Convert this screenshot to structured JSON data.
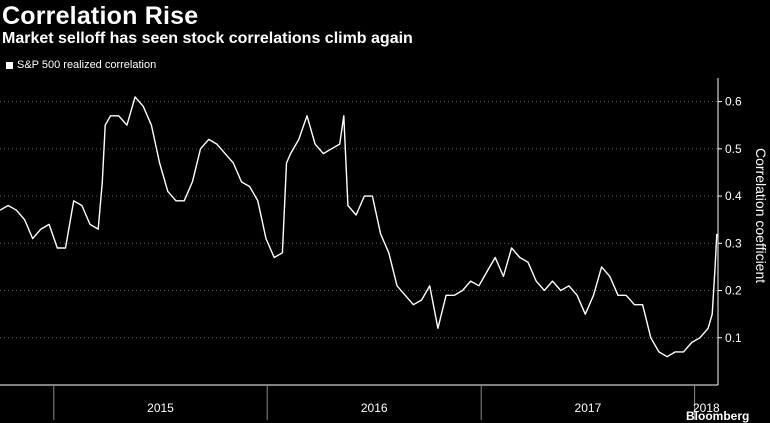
{
  "header": {
    "title": "Correlation Rise",
    "subtitle": "Market selloff has seen stock correlations climb again"
  },
  "watermark": "Bloomberg",
  "chart_data": {
    "type": "line",
    "ylabel": "Correlation coefficient",
    "ylim": [
      0,
      0.65
    ],
    "yticks": [
      0.1,
      0.2,
      0.3,
      0.4,
      0.5,
      0.6
    ],
    "y_axis_side": "right",
    "xlim": [
      "2014-10-01",
      "2018-02-10"
    ],
    "x_year_labels": [
      "2015",
      "2016",
      "2017",
      "2018"
    ],
    "grid": "horizontal dotted",
    "legend_position": "top-left",
    "series": [
      {
        "name": "S&P 500 realized correlation",
        "color": "#ffffff",
        "points": [
          [
            "2014-10-01",
            0.37
          ],
          [
            "2014-10-15",
            0.38
          ],
          [
            "2014-10-29",
            0.37
          ],
          [
            "2014-11-12",
            0.35
          ],
          [
            "2014-11-26",
            0.31
          ],
          [
            "2014-12-10",
            0.33
          ],
          [
            "2014-12-24",
            0.34
          ],
          [
            "2015-01-07",
            0.29
          ],
          [
            "2015-01-21",
            0.29
          ],
          [
            "2015-02-04",
            0.39
          ],
          [
            "2015-02-18",
            0.38
          ],
          [
            "2015-03-04",
            0.34
          ],
          [
            "2015-03-18",
            0.33
          ],
          [
            "2015-03-25",
            0.43
          ],
          [
            "2015-03-30",
            0.55
          ],
          [
            "2015-04-08",
            0.57
          ],
          [
            "2015-04-22",
            0.57
          ],
          [
            "2015-05-06",
            0.55
          ],
          [
            "2015-05-20",
            0.61
          ],
          [
            "2015-06-03",
            0.59
          ],
          [
            "2015-06-17",
            0.55
          ],
          [
            "2015-07-01",
            0.47
          ],
          [
            "2015-07-15",
            0.41
          ],
          [
            "2015-07-29",
            0.39
          ],
          [
            "2015-08-12",
            0.39
          ],
          [
            "2015-08-26",
            0.43
          ],
          [
            "2015-09-09",
            0.5
          ],
          [
            "2015-09-23",
            0.52
          ],
          [
            "2015-10-07",
            0.51
          ],
          [
            "2015-10-21",
            0.49
          ],
          [
            "2015-11-04",
            0.47
          ],
          [
            "2015-11-18",
            0.43
          ],
          [
            "2015-12-02",
            0.42
          ],
          [
            "2015-12-16",
            0.39
          ],
          [
            "2015-12-30",
            0.31
          ],
          [
            "2016-01-13",
            0.27
          ],
          [
            "2016-01-27",
            0.28
          ],
          [
            "2016-02-03",
            0.47
          ],
          [
            "2016-02-10",
            0.49
          ],
          [
            "2016-02-24",
            0.52
          ],
          [
            "2016-03-09",
            0.57
          ],
          [
            "2016-03-23",
            0.51
          ],
          [
            "2016-04-06",
            0.49
          ],
          [
            "2016-04-20",
            0.5
          ],
          [
            "2016-05-04",
            0.51
          ],
          [
            "2016-05-11",
            0.57
          ],
          [
            "2016-05-18",
            0.38
          ],
          [
            "2016-06-01",
            0.36
          ],
          [
            "2016-06-15",
            0.4
          ],
          [
            "2016-06-29",
            0.4
          ],
          [
            "2016-07-13",
            0.32
          ],
          [
            "2016-07-27",
            0.28
          ],
          [
            "2016-08-10",
            0.21
          ],
          [
            "2016-08-24",
            0.19
          ],
          [
            "2016-09-07",
            0.17
          ],
          [
            "2016-09-21",
            0.18
          ],
          [
            "2016-10-05",
            0.21
          ],
          [
            "2016-10-19",
            0.12
          ],
          [
            "2016-11-02",
            0.19
          ],
          [
            "2016-11-16",
            0.19
          ],
          [
            "2016-11-30",
            0.2
          ],
          [
            "2016-12-14",
            0.22
          ],
          [
            "2016-12-28",
            0.21
          ],
          [
            "2017-01-11",
            0.24
          ],
          [
            "2017-01-25",
            0.27
          ],
          [
            "2017-02-08",
            0.23
          ],
          [
            "2017-02-22",
            0.29
          ],
          [
            "2017-03-08",
            0.27
          ],
          [
            "2017-03-22",
            0.26
          ],
          [
            "2017-04-05",
            0.22
          ],
          [
            "2017-04-19",
            0.2
          ],
          [
            "2017-05-03",
            0.22
          ],
          [
            "2017-05-17",
            0.2
          ],
          [
            "2017-05-31",
            0.21
          ],
          [
            "2017-06-14",
            0.19
          ],
          [
            "2017-06-28",
            0.15
          ],
          [
            "2017-07-12",
            0.19
          ],
          [
            "2017-07-26",
            0.25
          ],
          [
            "2017-08-09",
            0.23
          ],
          [
            "2017-08-23",
            0.19
          ],
          [
            "2017-09-06",
            0.19
          ],
          [
            "2017-09-20",
            0.17
          ],
          [
            "2017-10-04",
            0.17
          ],
          [
            "2017-10-18",
            0.1
          ],
          [
            "2017-11-01",
            0.07
          ],
          [
            "2017-11-15",
            0.06
          ],
          [
            "2017-11-29",
            0.07
          ],
          [
            "2017-12-13",
            0.07
          ],
          [
            "2017-12-27",
            0.09
          ],
          [
            "2018-01-10",
            0.1
          ],
          [
            "2018-01-24",
            0.12
          ],
          [
            "2018-01-31",
            0.15
          ],
          [
            "2018-02-05",
            0.25
          ],
          [
            "2018-02-08",
            0.32
          ]
        ]
      }
    ]
  }
}
